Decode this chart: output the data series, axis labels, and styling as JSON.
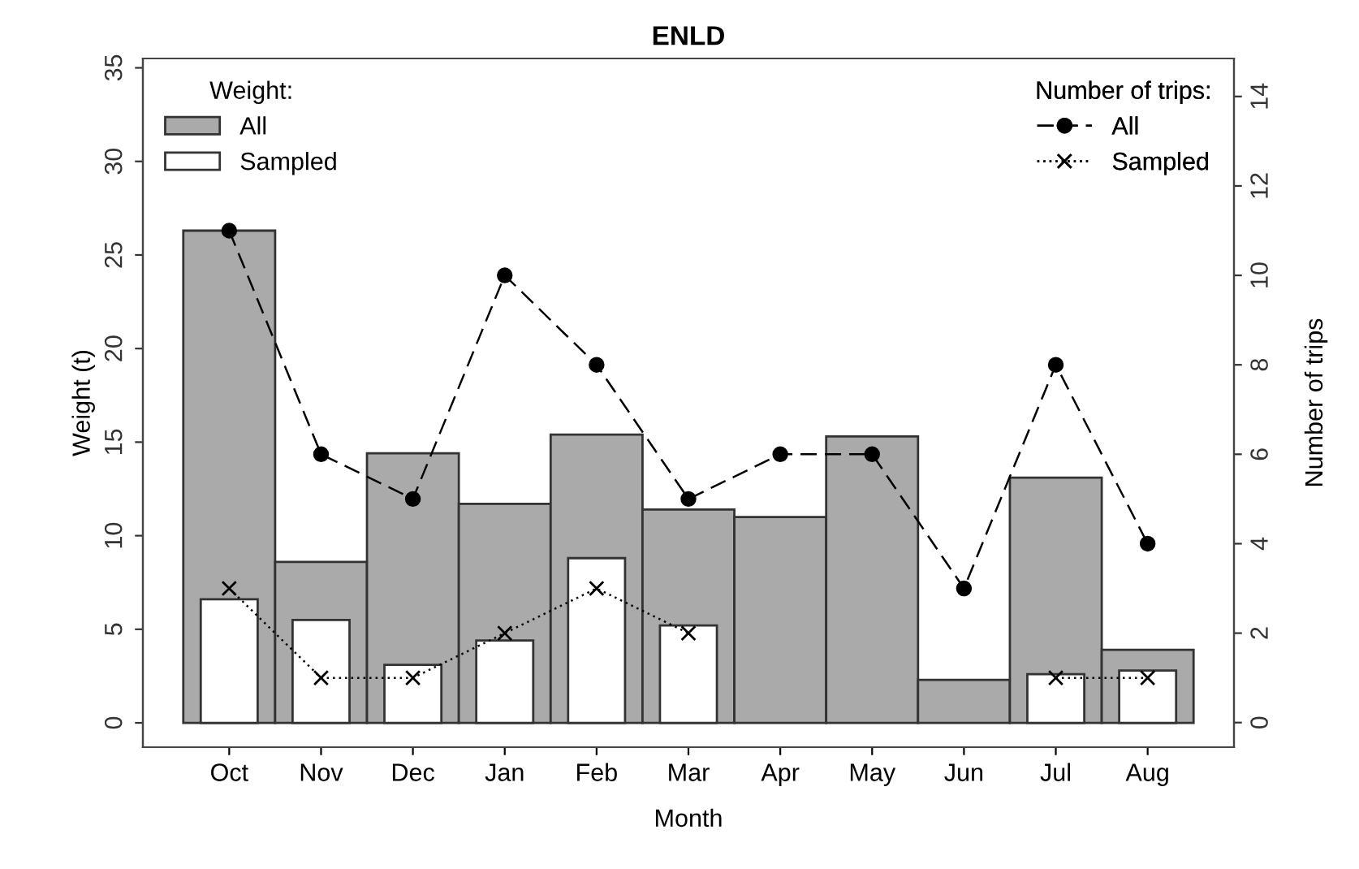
{
  "chart_data": {
    "type": "bar",
    "title": "ENLD",
    "xlabel": "Month",
    "ylabel": "Weight (t)",
    "y2label": "Number of trips",
    "categories": [
      "Oct",
      "Nov",
      "Dec",
      "Jan",
      "Feb",
      "Mar",
      "Apr",
      "May",
      "Jun",
      "Jul",
      "Aug"
    ],
    "series": [
      {
        "name": "All",
        "color": "#aaaaaa",
        "values": [
          26.3,
          8.6,
          14.4,
          11.7,
          15.4,
          11.4,
          11.0,
          15.3,
          2.3,
          13.1,
          3.9
        ]
      },
      {
        "name": "Sampled",
        "color": "#ffffff",
        "values": [
          6.6,
          5.5,
          3.1,
          4.4,
          8.8,
          5.2,
          null,
          null,
          null,
          2.6,
          2.8
        ]
      },
      {
        "name": "All",
        "type": "line",
        "axis": "y2",
        "color": "#000000",
        "marker": "circle",
        "line_style": "dashed",
        "values": [
          11,
          6,
          5,
          10,
          8,
          5,
          6,
          6,
          3,
          8,
          4
        ]
      },
      {
        "name": "Sampled",
        "type": "line",
        "axis": "y2",
        "color": "#000000",
        "marker": "cross",
        "line_style": "dotted",
        "values": [
          3,
          1,
          1,
          2,
          3,
          2,
          null,
          null,
          null,
          1,
          1
        ]
      }
    ],
    "ylim": [
      -1.3,
      35.5
    ],
    "yticks": [
      0,
      5,
      10,
      15,
      20,
      25,
      30,
      35
    ],
    "y2lim": [
      -0.55,
      14.85
    ],
    "y2ticks": [
      0,
      2,
      4,
      6,
      8,
      10,
      12,
      14
    ],
    "legend_title": [
      "Weight:",
      "Number of trips:"
    ],
    "legend": "top",
    "grid": false
  }
}
